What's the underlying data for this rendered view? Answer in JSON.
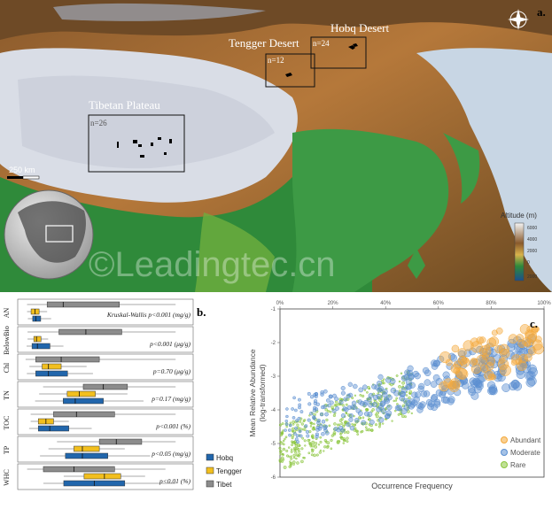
{
  "panels": {
    "a": {
      "label": "a."
    },
    "b": {
      "label": "b."
    },
    "c": {
      "label": "c."
    }
  },
  "map": {
    "regions": [
      {
        "name": "Hobq Desert",
        "count": "n=24"
      },
      {
        "name": "Tengger Desert",
        "count": "n=12"
      },
      {
        "name": "Tibetan Plateau",
        "count": "n=26"
      }
    ],
    "scale_bar": "250 km",
    "altitude_legend": {
      "title": "Altitude (m)",
      "ticks": [
        "6000",
        "4000",
        "2000",
        "0",
        "2000"
      ]
    },
    "watermark": "©Leadingtec.cn",
    "colors": {
      "lowland": "#2f8a3a",
      "plateau": "#d9dde6",
      "desert": "#8a5a2c",
      "sea": "#c8d6e4"
    }
  },
  "boxplots": {
    "rows": [
      {
        "label": "AN",
        "stat": "Kruskal-Wallis p<0.001 (mg/g)",
        "boxes": [
          {
            "group": "Tibet",
            "q1": 0.3,
            "med": 0.5,
            "q3": 1.2,
            "lo": 0.05,
            "hi": 1.9
          },
          {
            "group": "Tengger",
            "q1": 0.1,
            "med": 0.15,
            "q3": 0.2,
            "lo": 0.05,
            "hi": 0.3
          },
          {
            "group": "Hobq",
            "q1": 0.12,
            "med": 0.16,
            "q3": 0.22,
            "lo": 0.06,
            "hi": 0.35
          }
        ]
      },
      {
        "label": "BelowBio",
        "stat": "p<0.001 (μg/g)",
        "boxes": [
          {
            "group": "Tibet",
            "q1": 40,
            "med": 70,
            "q3": 110,
            "lo": 5,
            "hi": 170
          },
          {
            "group": "Tengger",
            "q1": 12,
            "med": 15,
            "q3": 20,
            "lo": 5,
            "hi": 28
          },
          {
            "group": "Hobq",
            "q1": 10,
            "med": 16,
            "q3": 30,
            "lo": 4,
            "hi": 45
          }
        ]
      },
      {
        "label": "Chl",
        "stat": "p=0.70 (μg/g)",
        "boxes": [
          {
            "group": "Tibet",
            "q1": 0.1,
            "med": 0.3,
            "q3": 0.6,
            "lo": 0.02,
            "hi": 1.2
          },
          {
            "group": "Tengger",
            "q1": 0.15,
            "med": 0.2,
            "q3": 0.3,
            "lo": 0.05,
            "hi": 0.5
          },
          {
            "group": "Hobq",
            "q1": 0.1,
            "med": 0.2,
            "q3": 0.35,
            "lo": 0.03,
            "hi": 0.55
          }
        ]
      },
      {
        "label": "TN",
        "stat": "p=0.17 (mg/g)",
        "boxes": [
          {
            "group": "Tibet",
            "q1": 1.5,
            "med": 2.0,
            "q3": 2.6,
            "lo": 0.5,
            "hi": 3.8
          },
          {
            "group": "Tengger",
            "q1": 1.1,
            "med": 1.4,
            "q3": 1.8,
            "lo": 0.4,
            "hi": 2.6
          },
          {
            "group": "Hobq",
            "q1": 1.0,
            "med": 1.3,
            "q3": 2.0,
            "lo": 0.3,
            "hi": 3.0
          }
        ]
      },
      {
        "label": "TOC",
        "stat": "p<0.001 (%)",
        "boxes": [
          {
            "group": "Tibet",
            "q1": 0.4,
            "med": 0.7,
            "q3": 1.2,
            "lo": 0.1,
            "hi": 2.0
          },
          {
            "group": "Tengger",
            "q1": 0.2,
            "med": 0.3,
            "q3": 0.4,
            "lo": 0.1,
            "hi": 0.6
          },
          {
            "group": "Hobq",
            "q1": 0.2,
            "med": 0.35,
            "q3": 0.6,
            "lo": 0.08,
            "hi": 0.9
          }
        ]
      },
      {
        "label": "TP",
        "stat": "p<0.05 (mg/g)",
        "boxes": [
          {
            "group": "Tibet",
            "q1": 0.45,
            "med": 0.55,
            "q3": 0.7,
            "lo": 0.2,
            "hi": 0.9
          },
          {
            "group": "Tengger",
            "q1": 0.3,
            "med": 0.35,
            "q3": 0.45,
            "lo": 0.15,
            "hi": 0.6
          },
          {
            "group": "Hobq",
            "q1": 0.25,
            "med": 0.35,
            "q3": 0.5,
            "lo": 0.1,
            "hi": 0.75
          }
        ]
      },
      {
        "label": "WHC",
        "stat": "p<0.01 (%)",
        "boxes": [
          {
            "group": "Tibet",
            "q1": 10,
            "med": 25,
            "q3": 45,
            "lo": 2,
            "hi": 70
          },
          {
            "group": "Tengger",
            "q1": 30,
            "med": 40,
            "q3": 48,
            "lo": 20,
            "hi": 60
          },
          {
            "group": "Hobq",
            "q1": 20,
            "med": 35,
            "q3": 50,
            "lo": 10,
            "hi": 75
          }
        ]
      }
    ],
    "legend": [
      {
        "name": "Hobq",
        "color": "#2166ac"
      },
      {
        "name": "Tengger",
        "color": "#f2bf1e"
      },
      {
        "name": "Tibet",
        "color": "#8c8c8c"
      }
    ]
  },
  "chart_data": {
    "type": "scatter",
    "xlabel": "Occurrence Frequency",
    "ylabel": "Mean Relative Abundance (log-transformed)",
    "ylabel_lines": [
      "Mean Relative Abundance",
      "(log-transformed)"
    ],
    "xlim": [
      0,
      100
    ],
    "ylim": [
      -6,
      -1
    ],
    "x_ticks": [
      "0%",
      "20%",
      "40%",
      "60%",
      "80%",
      "100%"
    ],
    "y_ticks": [
      "-1",
      "-2",
      "-3",
      "-4",
      "-5",
      "-6"
    ],
    "legend_position": "bottom-right",
    "series": [
      {
        "name": "Abundant",
        "color": "#f4a93b",
        "x_range": [
          62,
          98
        ],
        "y_range": [
          -3.3,
          -1.6
        ]
      },
      {
        "name": "Moderate",
        "color": "#5b8fd1",
        "x_range": [
          2,
          96
        ],
        "y_range": [
          -5.2,
          -1.8
        ]
      },
      {
        "name": "Rare",
        "color": "#8cc63f",
        "x_range": [
          0,
          50
        ],
        "y_range": [
          -5.9,
          -2.8
        ]
      }
    ]
  }
}
